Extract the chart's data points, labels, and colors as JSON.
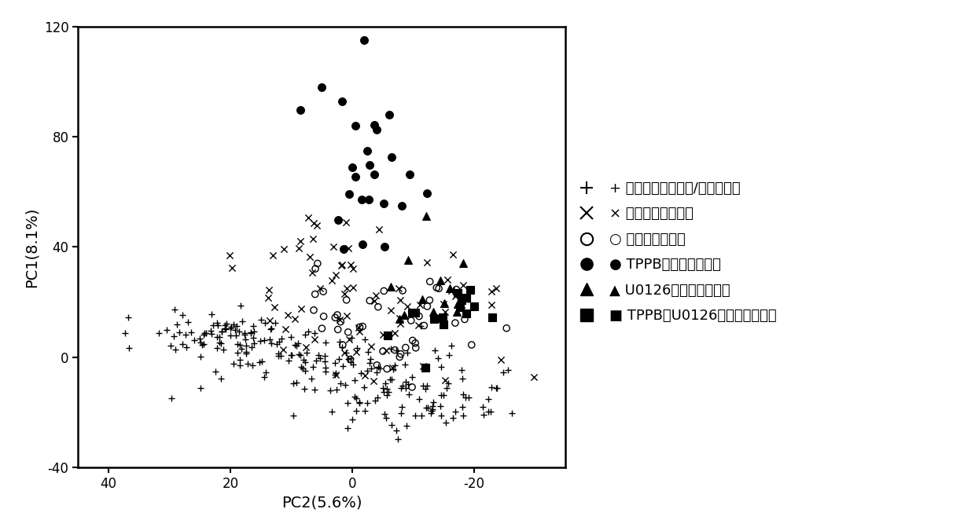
{
  "xlabel": "PC2(5.6%)",
  "ylabel": "PC1(8.1%)",
  "xlim": [
    45,
    -35
  ],
  "ylim": [
    -40,
    120
  ],
  "xticks": [
    40,
    20,
    0,
    -20
  ],
  "yticks": [
    -40,
    0,
    40,
    80,
    120
  ],
  "background_color": "#ffffff",
  "legend_labels": [
    "+ 体内原代肝母细胞/肝实质细胞",
    "× 体内原代胆管细胞",
    "○ 对照组胆管细胞",
    "● TPPB处理组胆管细胞",
    "▲ U0126处理组胆管细胞",
    "■ TPPB和U0126处理组胆管细胞"
  ],
  "seeds": {
    "plus": 10,
    "cross": 20,
    "circle": 30,
    "filled": 40,
    "triangle": 50,
    "square": 60
  }
}
